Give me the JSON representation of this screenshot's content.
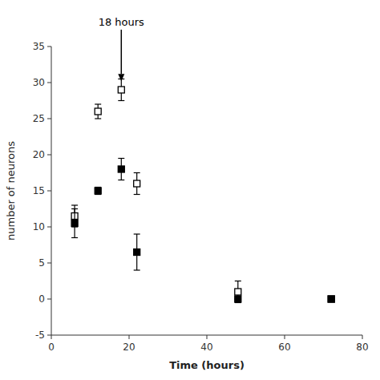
{
  "chart_data": {
    "type": "scatter",
    "xlabel": "Time  (hours)",
    "ylabel": "number  of  neurons",
    "x": [
      6,
      12,
      18,
      22,
      48,
      72
    ],
    "series": [
      {
        "marker": "open-square",
        "color": "#000000",
        "values": [
          11.5,
          26,
          29,
          16,
          1,
          0
        ],
        "errors": [
          1.5,
          1.0,
          1.5,
          1.5,
          1.5,
          0
        ]
      },
      {
        "marker": "square",
        "color": "#000000",
        "values": [
          10.5,
          15,
          18,
          6.5,
          0,
          0
        ],
        "errors": [
          2.0,
          0.5,
          1.5,
          2.5,
          0,
          0
        ]
      }
    ],
    "xlim": [
      0,
      80
    ],
    "ylim": [
      -5,
      35
    ],
    "xticks": [
      0,
      20,
      40,
      60,
      80
    ],
    "yticks": [
      -5,
      0,
      5,
      10,
      15,
      20,
      25,
      30,
      35
    ],
    "annotations": [
      {
        "text": "18  hours",
        "x": 18,
        "y": 30.2
      }
    ]
  }
}
